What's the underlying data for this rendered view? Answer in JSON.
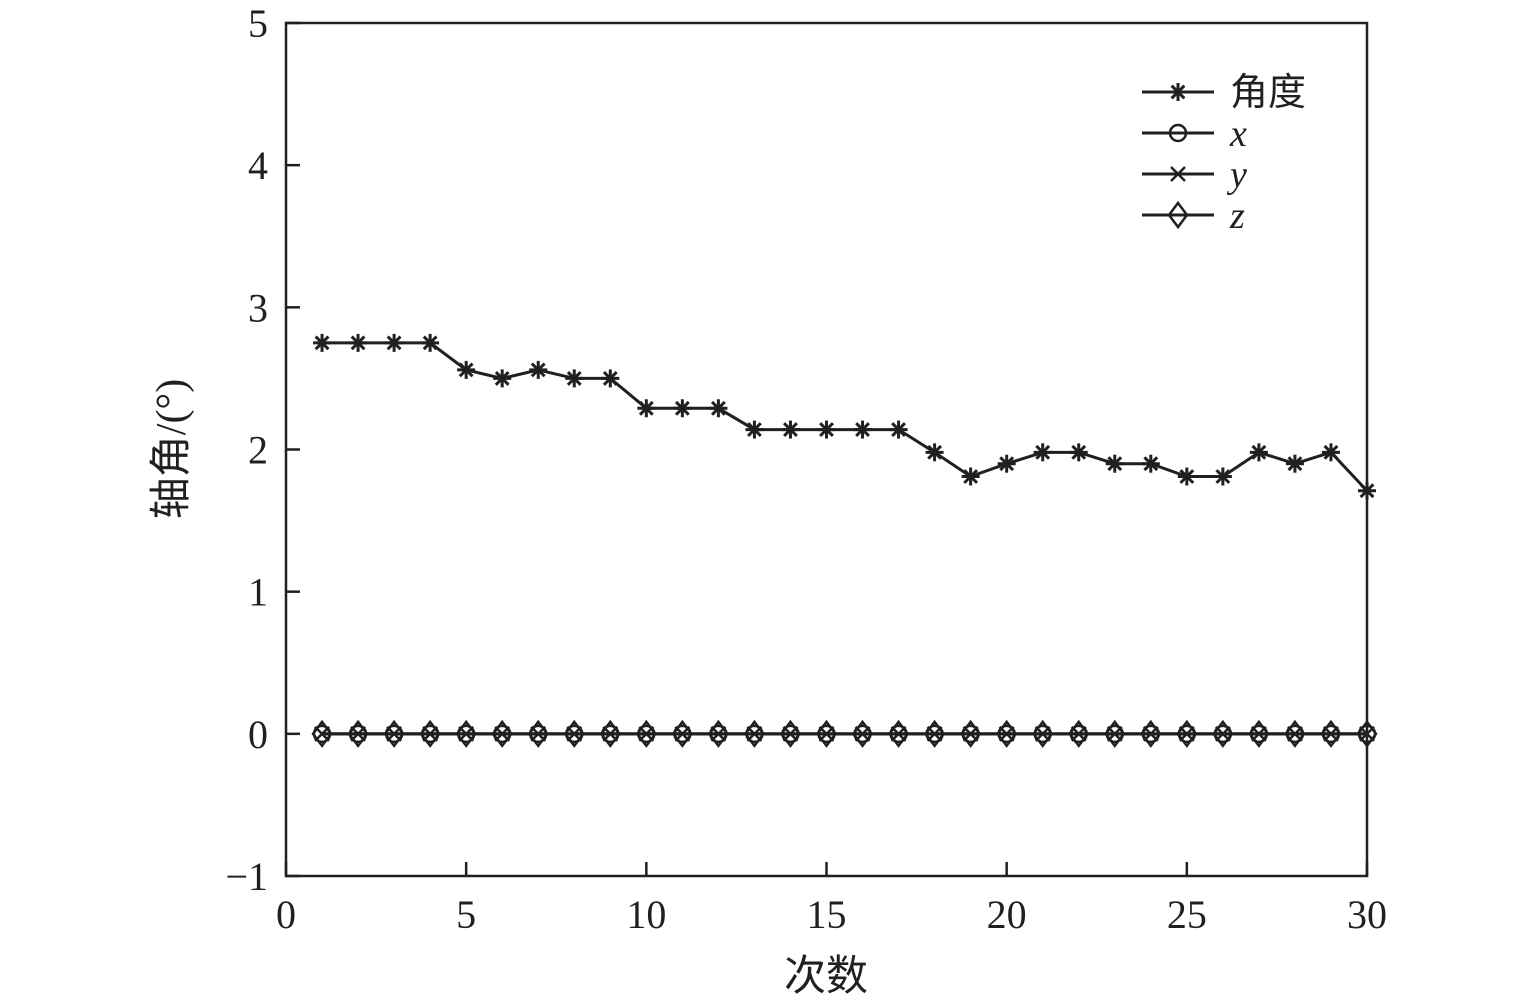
{
  "chart_data": {
    "type": "line",
    "title": "",
    "xlabel": "次数",
    "ylabel": "轴角/(°)",
    "xlim": [
      0,
      30
    ],
    "ylim": [
      -1,
      5
    ],
    "xticks": [
      "0",
      "5",
      "10",
      "15",
      "20",
      "25",
      "30"
    ],
    "yticks": [
      "−1",
      "0",
      "1",
      "2",
      "3",
      "4",
      "5"
    ],
    "grid": false,
    "legend_position": "top-right",
    "x": [
      1,
      2,
      3,
      4,
      5,
      6,
      7,
      8,
      9,
      10,
      11,
      12,
      13,
      14,
      15,
      16,
      17,
      18,
      19,
      20,
      21,
      22,
      23,
      24,
      25,
      26,
      27,
      28,
      29,
      30
    ],
    "series": [
      {
        "name": "角度",
        "marker": "asterisk",
        "values": [
          2.75,
          2.75,
          2.75,
          2.75,
          2.56,
          2.5,
          2.56,
          2.5,
          2.5,
          2.29,
          2.29,
          2.29,
          2.14,
          2.14,
          2.14,
          2.14,
          2.14,
          1.98,
          1.81,
          1.9,
          1.98,
          1.98,
          1.9,
          1.9,
          1.81,
          1.81,
          1.98,
          1.9,
          1.98,
          1.71
        ]
      },
      {
        "name": "x",
        "marker": "circle",
        "values": [
          0,
          0,
          0,
          0,
          0,
          0,
          0,
          0,
          0,
          0,
          0,
          0,
          0,
          0,
          0,
          0,
          0,
          0,
          0,
          0,
          0,
          0,
          0,
          0,
          0,
          0,
          0,
          0,
          0,
          0
        ]
      },
      {
        "name": "y",
        "marker": "cross",
        "values": [
          0,
          0,
          0,
          0,
          0,
          0,
          0,
          0,
          0,
          0,
          0,
          0,
          0,
          0,
          0,
          0,
          0,
          0,
          0,
          0,
          0,
          0,
          0,
          0,
          0,
          0,
          0,
          0,
          0,
          0
        ]
      },
      {
        "name": "z",
        "marker": "diamond",
        "values": [
          0,
          0,
          0,
          0,
          0,
          0,
          0,
          0,
          0,
          0,
          0,
          0,
          0,
          0,
          0,
          0,
          0,
          0,
          0,
          0,
          0,
          0,
          0,
          0,
          0,
          0,
          0,
          0,
          0,
          0
        ]
      }
    ],
    "colors": {
      "ink": "#231f20",
      "background": "#ffffff"
    }
  }
}
